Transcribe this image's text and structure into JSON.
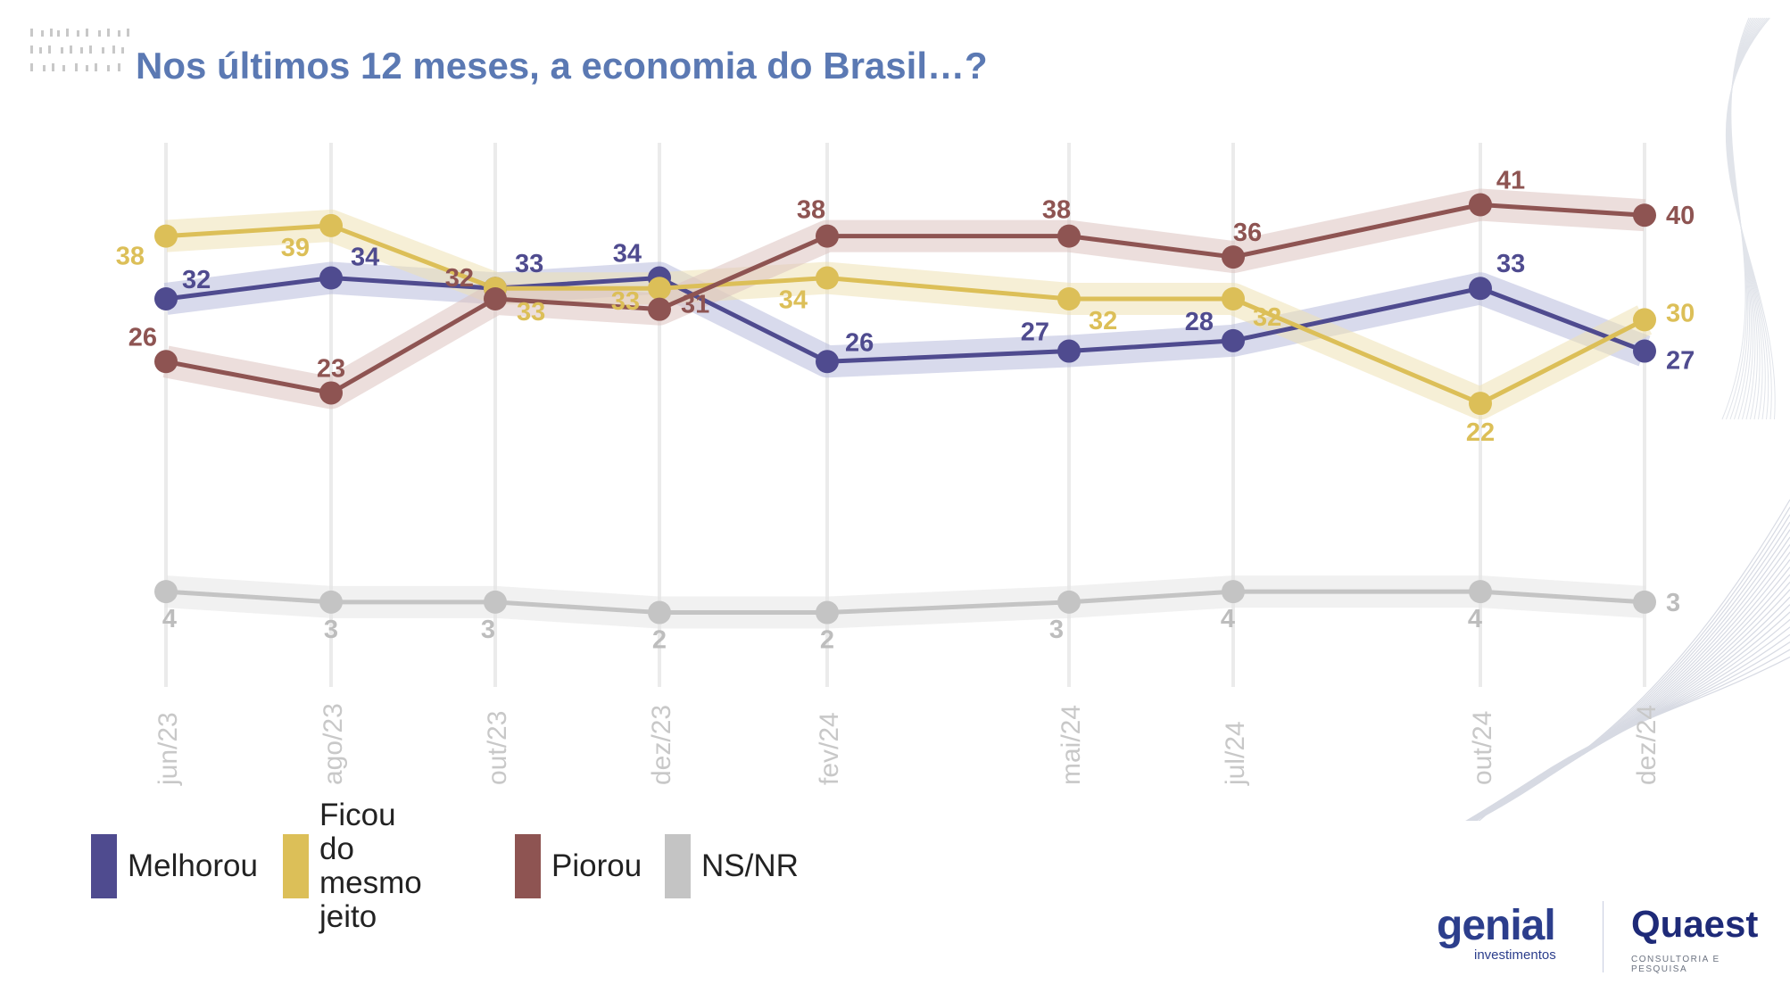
{
  "title": "Nos últimos 12 meses, a economia do Brasil…?",
  "chart_data": {
    "type": "line",
    "x": [
      "jun/23",
      "ago/23",
      "out/23",
      "dez/23",
      "fev/24",
      "mai/24",
      "jul/24",
      "out/24",
      "dez/24"
    ],
    "ylim": [
      0,
      45
    ],
    "grid": "vertical",
    "legend_position": "bottom-left",
    "series": [
      {
        "name": "Melhorou",
        "color": "#4f4b8f",
        "band_color": "#b8bbdc",
        "values": [
          32,
          34,
          33,
          34,
          26,
          27,
          28,
          33,
          27
        ]
      },
      {
        "name": "Ficou do\nmesmo jeito",
        "color": "#dcbf58",
        "band_color": "#efe2b4",
        "values": [
          38,
          39,
          33,
          33,
          34,
          32,
          32,
          22,
          30
        ]
      },
      {
        "name": "Piorou",
        "color": "#8e5452",
        "band_color": "#dcc2c0",
        "values": [
          26,
          23,
          32,
          31,
          38,
          38,
          36,
          41,
          40
        ]
      },
      {
        "name": "NS/NR",
        "color": "#c4c4c4",
        "band_color": "#e6e6e6",
        "values": [
          4,
          3,
          3,
          2,
          2,
          3,
          4,
          4,
          3
        ]
      }
    ]
  },
  "logos": {
    "genial": "genial",
    "genial_sub": "investimentos",
    "quaest": "Quaest",
    "quaest_sub": "CONSULTORIA E PESQUISA"
  }
}
